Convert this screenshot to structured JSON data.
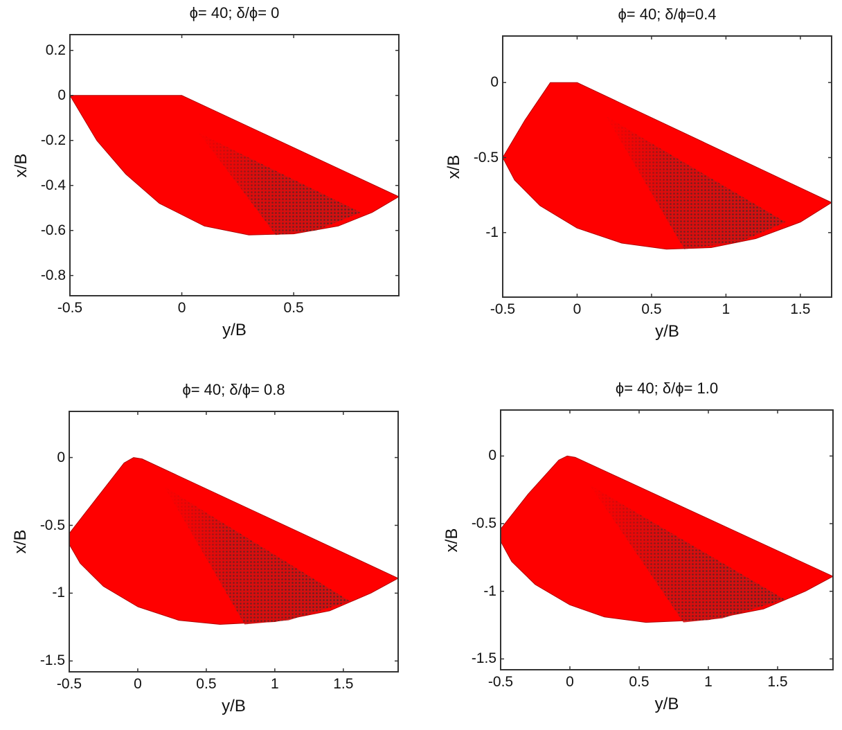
{
  "figure": {
    "fill_color": "#ff0000",
    "hatch_color": "#3a2a2a",
    "axis_color": "#333333"
  },
  "chart_data": [
    {
      "type": "area",
      "title": "ϕ= 40; δ/ϕ= 0",
      "xlabel": "y/B",
      "ylabel": "x/B",
      "xlim": [
        -0.5,
        0.97
      ],
      "ylim": [
        -0.89,
        0.27
      ],
      "xticks": [
        -0.5,
        0,
        0.5
      ],
      "xtick_labels": [
        "-0.5",
        "0",
        "0.5"
      ],
      "yticks": [
        0.2,
        0,
        -0.2,
        -0.4,
        -0.6,
        -0.8
      ],
      "ytick_labels": [
        "0.2",
        "0",
        "-0.2",
        "-0.4",
        "-0.6",
        "-0.8"
      ],
      "outline": [
        [
          -0.5,
          0
        ],
        [
          0,
          0
        ],
        [
          0.97,
          -0.45
        ],
        [
          0.85,
          -0.52
        ],
        [
          0.7,
          -0.58
        ],
        [
          0.5,
          -0.615
        ],
        [
          0.3,
          -0.62
        ],
        [
          0.1,
          -0.58
        ],
        [
          -0.1,
          -0.48
        ],
        [
          -0.25,
          -0.35
        ],
        [
          -0.38,
          -0.2
        ],
        [
          -0.5,
          0
        ]
      ],
      "hatch": [
        [
          0.08,
          -0.17
        ],
        [
          0.8,
          -0.52
        ],
        [
          0.6,
          -0.6
        ],
        [
          0.42,
          -0.62
        ]
      ]
    },
    {
      "type": "area",
      "title": "ϕ= 40; δ/ϕ=0.4",
      "xlabel": "y/B",
      "ylabel": "x/B",
      "xlim": [
        -0.5,
        1.71
      ],
      "ylim": [
        -1.43,
        0.31
      ],
      "xticks": [
        -0.5,
        0,
        0.5,
        1,
        1.5
      ],
      "xtick_labels": [
        "-0.5",
        "0",
        "0.5",
        "1",
        "1.5"
      ],
      "yticks": [
        0,
        -0.5,
        -1
      ],
      "ytick_labels": [
        "0",
        "-0.5",
        "-1"
      ],
      "outline": [
        [
          -0.5,
          -0.5
        ],
        [
          -0.35,
          -0.25
        ],
        [
          -0.18,
          0
        ],
        [
          0,
          0
        ],
        [
          1.71,
          -0.8
        ],
        [
          1.5,
          -0.93
        ],
        [
          1.2,
          -1.04
        ],
        [
          0.9,
          -1.1
        ],
        [
          0.6,
          -1.11
        ],
        [
          0.3,
          -1.07
        ],
        [
          0,
          -0.97
        ],
        [
          -0.25,
          -0.82
        ],
        [
          -0.42,
          -0.65
        ],
        [
          -0.5,
          -0.5
        ]
      ],
      "hatch": [
        [
          0.2,
          -0.23
        ],
        [
          1.4,
          -0.93
        ],
        [
          1.1,
          -1.06
        ],
        [
          0.72,
          -1.11
        ]
      ]
    },
    {
      "type": "area",
      "title": "ϕ= 40; δ/ϕ= 0.8",
      "xlabel": "y/B",
      "ylabel": "x/B",
      "xlim": [
        -0.5,
        1.9
      ],
      "ylim": [
        -1.58,
        0.34
      ],
      "xticks": [
        -0.5,
        0,
        0.5,
        1,
        1.5
      ],
      "xtick_labels": [
        "-0.5",
        "0",
        "0.5",
        "1",
        "1.5"
      ],
      "yticks": [
        0,
        -0.5,
        -1,
        -1.5
      ],
      "ytick_labels": [
        "0",
        "-0.5",
        "-1",
        "-1.5"
      ],
      "outline": [
        [
          -0.5,
          -0.56
        ],
        [
          -0.3,
          -0.3
        ],
        [
          -0.1,
          -0.04
        ],
        [
          -0.03,
          0
        ],
        [
          0.03,
          -0.01
        ],
        [
          1.9,
          -0.89
        ],
        [
          1.7,
          -1.0
        ],
        [
          1.4,
          -1.13
        ],
        [
          1.0,
          -1.21
        ],
        [
          0.6,
          -1.23
        ],
        [
          0.3,
          -1.2
        ],
        [
          0,
          -1.1
        ],
        [
          -0.25,
          -0.95
        ],
        [
          -0.42,
          -0.78
        ],
        [
          -0.5,
          -0.64
        ]
      ],
      "hatch": [
        [
          0.2,
          -0.22
        ],
        [
          1.55,
          -1.06
        ],
        [
          1.1,
          -1.2
        ],
        [
          0.78,
          -1.23
        ]
      ]
    },
    {
      "type": "area",
      "title": "ϕ= 40; δ/ϕ= 1.0",
      "xlabel": "y/B",
      "ylabel": "x/B",
      "xlim": [
        -0.5,
        1.9
      ],
      "ylim": [
        -1.58,
        0.34
      ],
      "xticks": [
        -0.5,
        0,
        0.5,
        1,
        1.5
      ],
      "xtick_labels": [
        "-0.5",
        "0",
        "0.5",
        "1",
        "1.5"
      ],
      "yticks": [
        0,
        -0.5,
        -1,
        -1.5
      ],
      "ytick_labels": [
        "0",
        "-0.5",
        "-1",
        "-1.5"
      ],
      "outline": [
        [
          -0.5,
          -0.54
        ],
        [
          -0.3,
          -0.28
        ],
        [
          -0.08,
          -0.03
        ],
        [
          -0.02,
          0
        ],
        [
          0.04,
          -0.01
        ],
        [
          1.9,
          -0.89
        ],
        [
          1.7,
          -1.0
        ],
        [
          1.4,
          -1.13
        ],
        [
          1.0,
          -1.21
        ],
        [
          0.55,
          -1.23
        ],
        [
          0.25,
          -1.19
        ],
        [
          0,
          -1.1
        ],
        [
          -0.25,
          -0.95
        ],
        [
          -0.42,
          -0.78
        ],
        [
          -0.5,
          -0.63
        ]
      ],
      "hatch": [
        [
          0.15,
          -0.22
        ],
        [
          1.55,
          -1.06
        ],
        [
          1.1,
          -1.2
        ],
        [
          0.82,
          -1.23
        ]
      ]
    }
  ]
}
